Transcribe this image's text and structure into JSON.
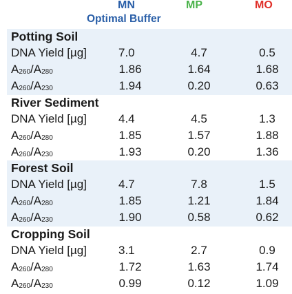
{
  "header": {
    "columns": [
      "MN",
      "MP",
      "MO"
    ],
    "subtitle": "Optimal Buffer",
    "colors": {
      "MN": "#2a5fa8",
      "MP": "#4bb34b",
      "MO": "#e0302a"
    }
  },
  "labels": {
    "yield": "DNA Yield [µg]",
    "ratio_a": "A",
    "ratio_a_sub1": "260",
    "ratio_slash": "/A",
    "ratio_a_sub2": "280",
    "ratio_b_sub2": "230"
  },
  "groups": [
    {
      "name": "Potting Soil",
      "rows": [
        {
          "label": "DNA Yield [µg]",
          "mn": "7.0",
          "mp": "4.7",
          "mo": "0.5"
        },
        {
          "label": "A260/A280",
          "mn": "1.86",
          "mp": "1.64",
          "mo": "1.68"
        },
        {
          "label": "A260/A230",
          "mn": "1.94",
          "mp": "0.20",
          "mo": "0.63"
        }
      ]
    },
    {
      "name": "River Sediment",
      "rows": [
        {
          "label": "DNA Yield [µg]",
          "mn": "4.4",
          "mp": "4.5",
          "mo": "1.3"
        },
        {
          "label": "A260/A280",
          "mn": "1.85",
          "mp": "1.57",
          "mo": "1.88"
        },
        {
          "label": "A260/A230",
          "mn": "1.93",
          "mp": "0.20",
          "mo": "1.36"
        }
      ]
    },
    {
      "name": "Forest Soil",
      "rows": [
        {
          "label": "DNA Yield [µg]",
          "mn": "4.7",
          "mp": "7.8",
          "mo": "1.5"
        },
        {
          "label": "A260/A280",
          "mn": "1.85",
          "mp": "1.21",
          "mo": "1.84"
        },
        {
          "label": "A260/A230",
          "mn": "1.90",
          "mp": "0.58",
          "mo": "0.62"
        }
      ]
    },
    {
      "name": "Cropping Soil",
      "rows": [
        {
          "label": "DNA Yield [µg]",
          "mn": "3.1",
          "mp": "2.7",
          "mo": "0.9"
        },
        {
          "label": "A260/A280",
          "mn": "1.72",
          "mp": "1.63",
          "mo": "1.74"
        },
        {
          "label": "A260/A230",
          "mn": "0.99",
          "mp": "0.12",
          "mo": "1.09"
        }
      ]
    }
  ]
}
